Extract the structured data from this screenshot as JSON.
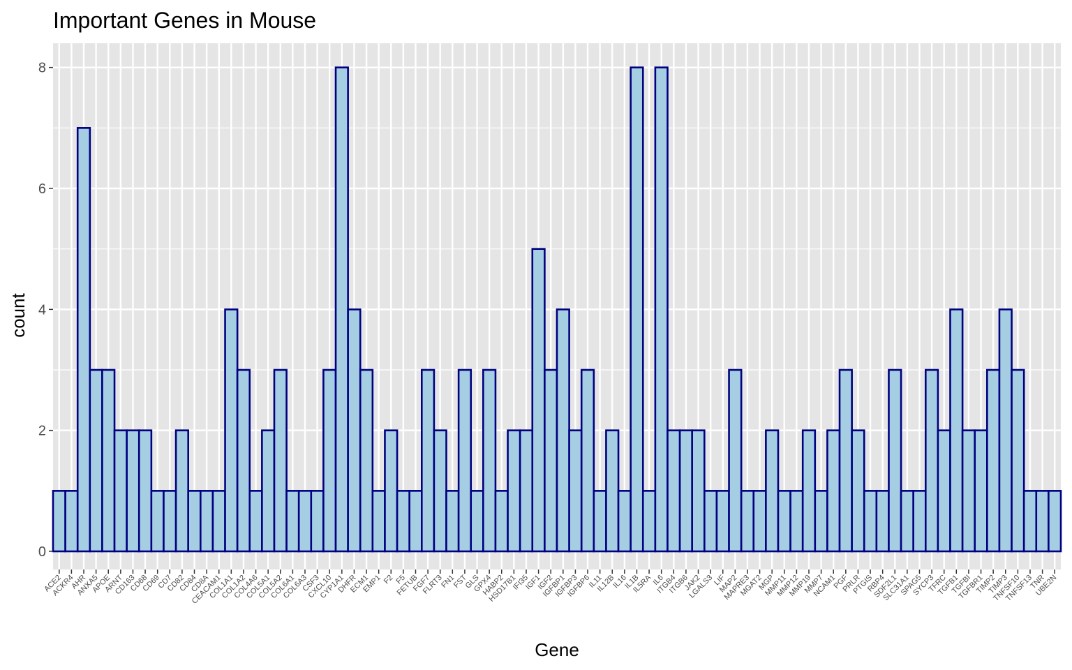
{
  "chart_data": {
    "type": "bar",
    "title": "Important Genes in Mouse",
    "xlabel": "Gene",
    "ylabel": "count",
    "ylim": [
      -0.3,
      8.4
    ],
    "yticks": [
      0,
      2,
      4,
      6,
      8
    ],
    "grid": true,
    "legend": "none",
    "colors": {
      "panel_background": "#e5e5e5",
      "grid_line": "#ffffff",
      "bar_fill": "#a6cee3",
      "bar_stroke": "#000080",
      "tick_text": "#4d4d4d"
    },
    "categories": [
      "ACE2",
      "ACKR4",
      "AHR",
      "ANXA5",
      "APOE",
      "ARNT",
      "CD163",
      "CD68",
      "CD69",
      "CD7",
      "CD82",
      "CD84",
      "CD8A",
      "CEACAM1",
      "COL1A1",
      "COL1A2",
      "COL4A6",
      "COL5A1",
      "COL5A2",
      "COL6A1",
      "COL6A3",
      "CSF3",
      "CXCL10",
      "CYP1A1",
      "DHFR",
      "ECM1",
      "EMP1",
      "F2",
      "F5",
      "FETUB",
      "FGF7",
      "FLRT3",
      "FN1",
      "FST",
      "GLS",
      "GPX4",
      "HABP2",
      "HSD17B1",
      "IFI35",
      "IGF1",
      "IGF2",
      "IGFBP1",
      "IGFBP3",
      "IGFBP6",
      "IL11",
      "IL12B",
      "IL16",
      "IL1B",
      "IL5RA",
      "IL6",
      "ITGB4",
      "ITGB6",
      "JAK2",
      "LGALS3",
      "LIF",
      "MAP2",
      "MAPRE3",
      "MGAT2",
      "MGP",
      "MMP11",
      "MMP12",
      "MMP19",
      "MMP7",
      "NCAM1",
      "PGF",
      "PRLR",
      "PTGIS",
      "RBP4",
      "SDF2L1",
      "SLC31A1",
      "SPAG5",
      "SYCP3",
      "TFRC",
      "TGFB1",
      "TGFBI",
      "TGFBR1",
      "TIMP2",
      "TIMP3",
      "TNFSF10",
      "TNFSF13",
      "TNR",
      "UBE2N"
    ],
    "values": [
      1,
      1,
      7,
      3,
      3,
      2,
      2,
      2,
      1,
      1,
      2,
      1,
      1,
      1,
      4,
      3,
      1,
      2,
      3,
      1,
      1,
      1,
      3,
      8,
      4,
      3,
      1,
      2,
      1,
      1,
      3,
      2,
      1,
      3,
      1,
      3,
      1,
      2,
      2,
      5,
      3,
      4,
      2,
      3,
      1,
      2,
      1,
      8,
      1,
      8,
      2,
      2,
      2,
      1,
      1,
      3,
      1,
      1,
      2,
      1,
      1,
      2,
      1,
      2,
      3,
      2,
      1,
      1,
      3,
      1,
      1,
      3,
      2,
      4,
      2,
      2,
      3,
      4,
      3,
      1,
      1,
      1
    ]
  }
}
